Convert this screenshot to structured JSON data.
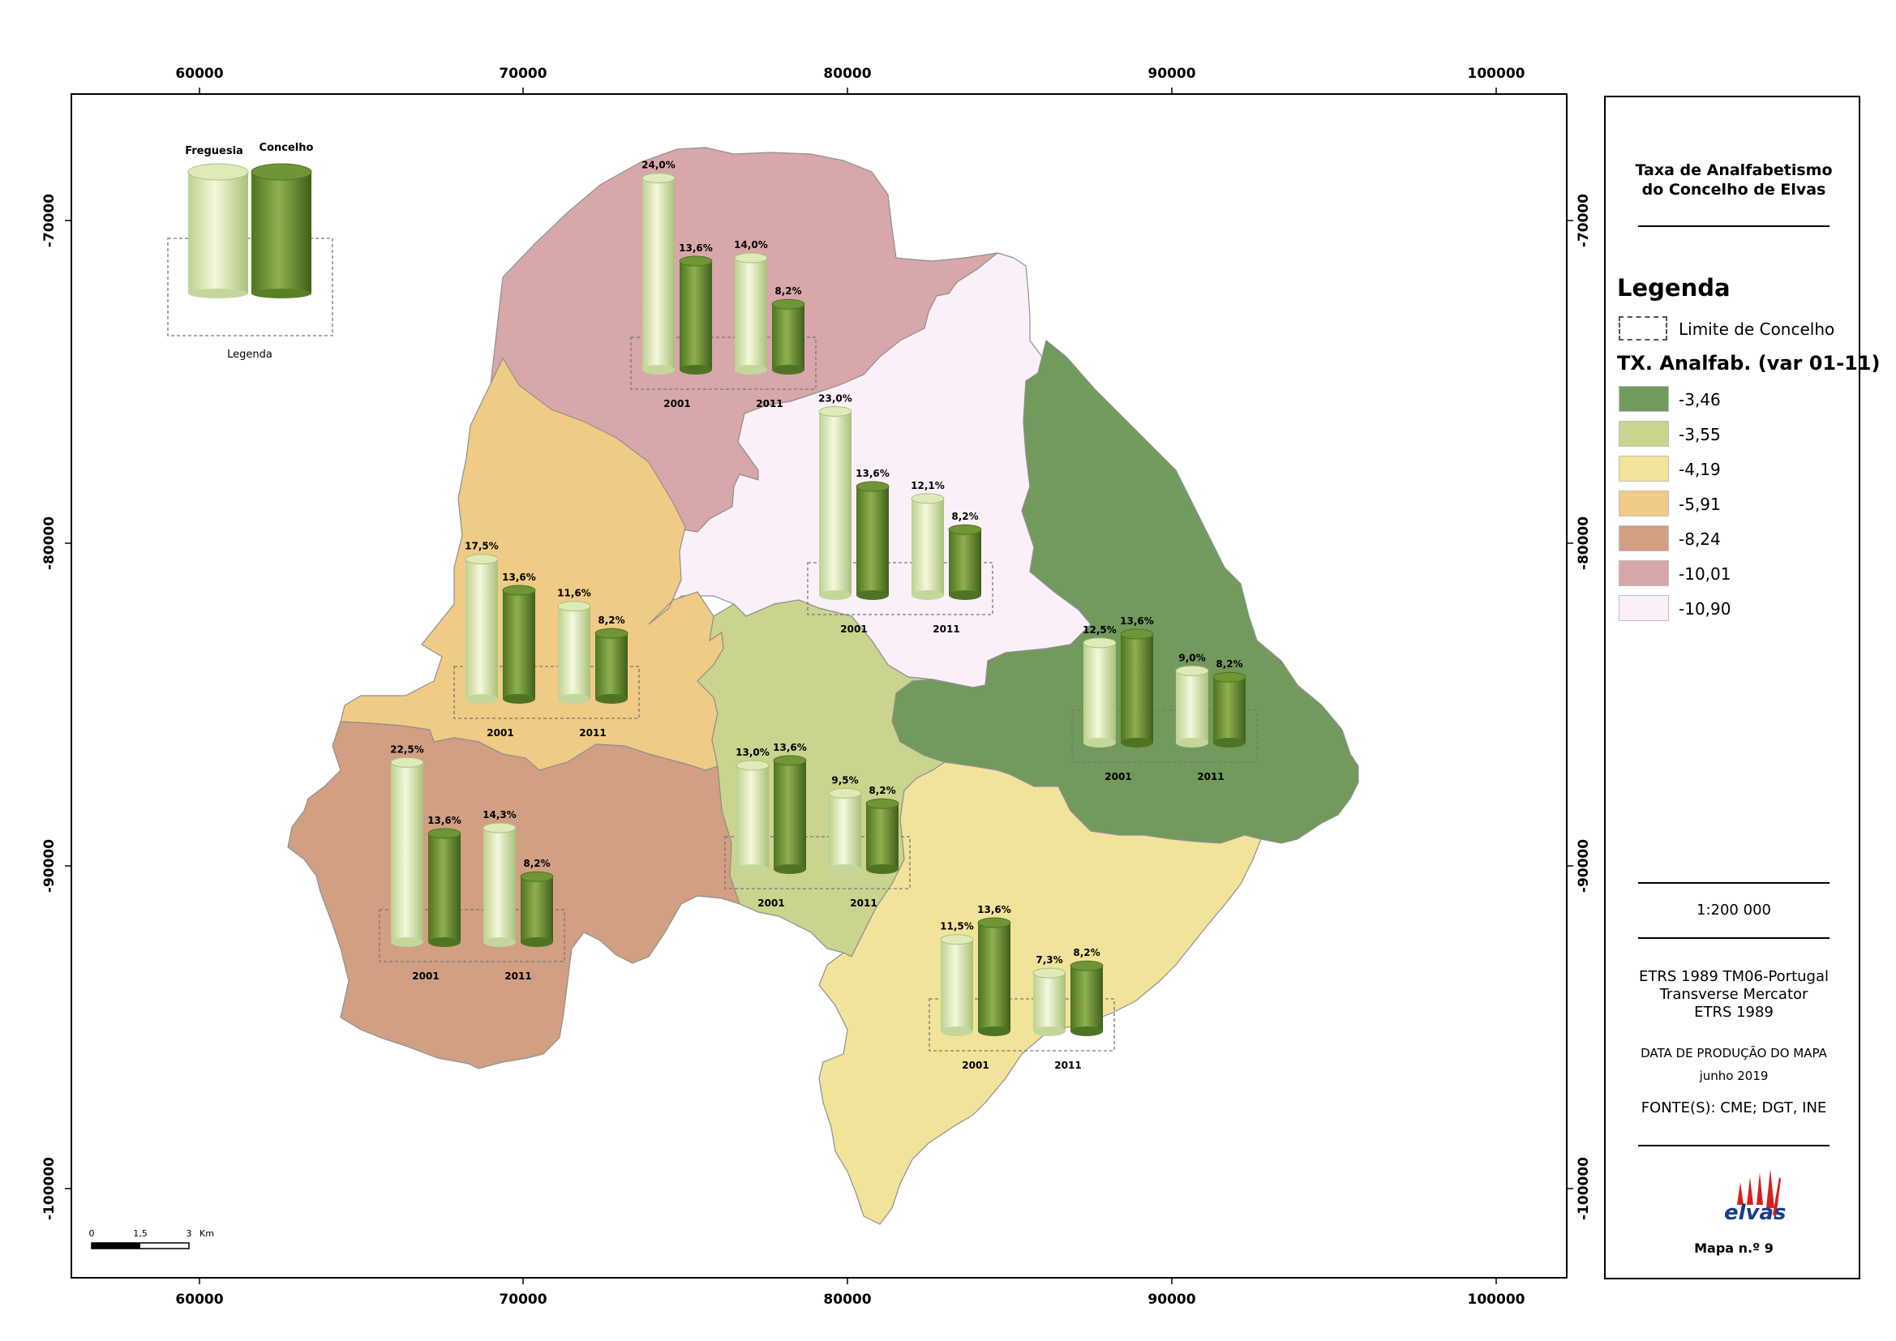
{
  "map": {
    "x_ticks": [
      "60000",
      "70000",
      "80000",
      "90000",
      "100000"
    ],
    "y_ticks": [
      "-70000",
      "-80000",
      "-90000",
      "-100000"
    ],
    "inset_legend": {
      "freguesia_label": "Freguesia",
      "concelho_label": "Concelho",
      "caption": "Legenda"
    },
    "scalebar": {
      "labels": [
        "0",
        "1,5",
        "3"
      ],
      "unit": "Km"
    },
    "regions": [
      {
        "id": "north",
        "class_value": "-10,01",
        "color": "#d8a7aa"
      },
      {
        "id": "center",
        "class_value": "-10,90",
        "color": "#fbf0fa"
      },
      {
        "id": "west",
        "class_value": "-5,91",
        "color": "#efcb85"
      },
      {
        "id": "east",
        "class_value": "-3,46",
        "color": "#729a5c"
      },
      {
        "id": "middle",
        "class_value": "-3,55",
        "color": "#cad48e"
      },
      {
        "id": "southwest",
        "class_value": "-8,24",
        "color": "#d29f83"
      },
      {
        "id": "southeast",
        "class_value": "-4,19",
        "color": "#f2e39b"
      }
    ],
    "bar_groups": [
      {
        "id": "north",
        "year_labels": [
          "2001",
          "2011"
        ],
        "values_pct": [
          24.0,
          13.6,
          14.0,
          8.2
        ],
        "labels": [
          "24,0%",
          "13,6%",
          "14,0%",
          "8,2%"
        ]
      },
      {
        "id": "center",
        "year_labels": [
          "2001",
          "2011"
        ],
        "values_pct": [
          23.0,
          13.6,
          12.1,
          8.2
        ],
        "labels": [
          "23,0%",
          "13,6%",
          "12,1%",
          "8,2%"
        ]
      },
      {
        "id": "west",
        "year_labels": [
          "2001",
          "2011"
        ],
        "values_pct": [
          17.5,
          13.6,
          11.6,
          8.2
        ],
        "labels": [
          "17,5%",
          "13,6%",
          "11,6%",
          "8,2%"
        ]
      },
      {
        "id": "middle",
        "year_labels": [
          "2001",
          "2011"
        ],
        "values_pct": [
          13.0,
          13.6,
          9.5,
          8.2
        ],
        "labels": [
          "13,0%",
          "13,6%",
          "9,5%",
          "8,2%"
        ]
      },
      {
        "id": "east",
        "year_labels": [
          "2001",
          "2011"
        ],
        "values_pct": [
          12.5,
          13.6,
          9.0,
          8.2
        ],
        "labels": [
          "12,5%",
          "13,6%",
          "9,0%",
          "8,2%"
        ]
      },
      {
        "id": "southwest",
        "year_labels": [
          "2001",
          "2011"
        ],
        "values_pct": [
          22.5,
          13.6,
          14.3,
          8.2
        ],
        "labels": [
          "22,5%",
          "13,6%",
          "14,3%",
          "8,2%"
        ]
      },
      {
        "id": "southeast",
        "year_labels": [
          "2001",
          "2011"
        ],
        "values_pct": [
          11.5,
          13.6,
          7.3,
          8.2
        ],
        "labels": [
          "11,5%",
          "13,6%",
          "7,3%",
          "8,2%"
        ]
      }
    ]
  },
  "side_panel": {
    "title_line1": "Taxa de Analfabetismo",
    "title_line2": "do Concelho de Elvas",
    "legend_heading": "Legenda",
    "boundary_label": "Limite de Concelho",
    "variable_heading": "TX. Analfab. (var 01-11)",
    "classes": [
      {
        "label": "-3,46",
        "color": "#729a5c"
      },
      {
        "label": "-3,55",
        "color": "#cad48e"
      },
      {
        "label": "-4,19",
        "color": "#f2e39b"
      },
      {
        "label": "-5,91",
        "color": "#efcb85"
      },
      {
        "label": "-8,24",
        "color": "#d29f83"
      },
      {
        "label": "-10,01",
        "color": "#d8a7aa"
      },
      {
        "label": "-10,90",
        "color": "#fbf0fa"
      }
    ],
    "scale": "1:200 000",
    "projection_line1": "ETRS 1989 TM06-Portugal",
    "projection_line2": "Transverse Mercator",
    "projection_line3": "ETRS 1989",
    "date_heading": "DATA DE PRODUÇÃO DO MAPA",
    "date_value": "junho 2019",
    "sources": "FONTE(S): CME; DGT, INE",
    "logo_text": "elvas",
    "map_number": "Mapa n.º 9"
  }
}
